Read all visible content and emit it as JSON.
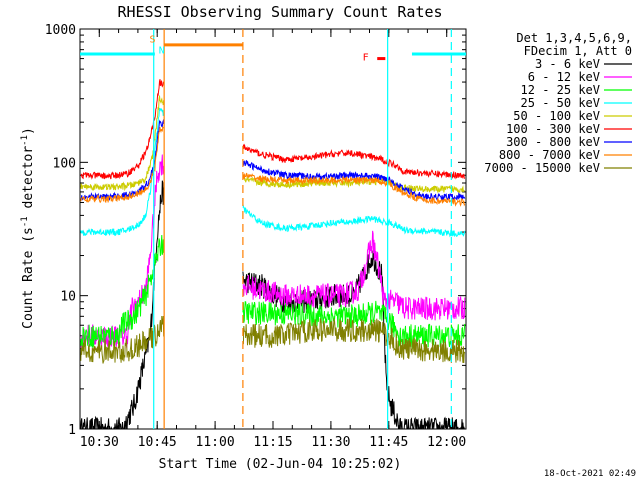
{
  "chart_data": {
    "type": "line",
    "title": "RHESSI Observing Summary Count Rates",
    "xlabel": "Start Time (02-Jun-04 10:25:02)",
    "ylabel_main": "Count Rate (s",
    "ylabel_sup1": "-1",
    "ylabel_mid": " detector",
    "ylabel_sup2": "-1",
    "ylabel_end": ")",
    "yscale": "log",
    "ylim": [
      1,
      1000
    ],
    "xlim": [
      10.4167,
      12.0833
    ],
    "x_ticks": [
      {
        "value": 10.5,
        "label": "10:30"
      },
      {
        "value": 10.75,
        "label": "10:45"
      },
      {
        "value": 11.0,
        "label": "11:00"
      },
      {
        "value": 11.25,
        "label": "11:15"
      },
      {
        "value": 11.5,
        "label": "11:30"
      },
      {
        "value": 11.75,
        "label": "11:45"
      },
      {
        "value": 12.0,
        "label": "12:00"
      }
    ],
    "y_ticks": [
      {
        "value": 1,
        "label": "1"
      },
      {
        "value": 10,
        "label": "10"
      },
      {
        "value": 100,
        "label": "100"
      },
      {
        "value": 1000,
        "label": "1000"
      }
    ],
    "legend_header": [
      "Det 1,3,4,5,6,9,",
      "FDecim 1, Att 0"
    ],
    "timestamp": "18-Oct-2021 02:49",
    "gaps": [
      [
        10.78,
        11.12
      ]
    ],
    "series": [
      {
        "name": "3 - 6 keV",
        "color": "#000000",
        "points": [
          [
            10.42,
            1
          ],
          [
            10.55,
            1
          ],
          [
            10.6,
            1
          ],
          [
            10.65,
            1.5
          ],
          [
            10.68,
            2.5
          ],
          [
            10.72,
            5
          ],
          [
            10.75,
            30
          ],
          [
            10.77,
            60
          ],
          [
            11.12,
            13
          ],
          [
            11.2,
            12
          ],
          [
            11.3,
            9
          ],
          [
            11.4,
            9
          ],
          [
            11.52,
            10
          ],
          [
            11.6,
            10
          ],
          [
            11.68,
            20
          ],
          [
            11.72,
            14
          ],
          [
            11.74,
            2
          ],
          [
            11.76,
            1.5
          ],
          [
            11.8,
            1
          ],
          [
            12.08,
            1
          ]
        ]
      },
      {
        "name": "6 - 12 keV",
        "color": "#ff00ff",
        "points": [
          [
            10.42,
            5
          ],
          [
            10.62,
            5
          ],
          [
            10.64,
            8
          ],
          [
            10.67,
            9
          ],
          [
            10.7,
            11
          ],
          [
            10.72,
            20
          ],
          [
            10.75,
            80
          ],
          [
            10.77,
            100
          ],
          [
            11.12,
            12
          ],
          [
            11.2,
            11
          ],
          [
            11.3,
            10
          ],
          [
            11.4,
            10
          ],
          [
            11.5,
            10
          ],
          [
            11.55,
            10
          ],
          [
            11.62,
            11
          ],
          [
            11.68,
            26
          ],
          [
            11.71,
            15
          ],
          [
            11.73,
            9
          ],
          [
            11.78,
            9
          ],
          [
            11.82,
            8
          ],
          [
            12.08,
            8
          ]
        ]
      },
      {
        "name": "12 - 25 keV",
        "color": "#00ff00",
        "points": [
          [
            10.42,
            5
          ],
          [
            10.58,
            5
          ],
          [
            10.6,
            6
          ],
          [
            10.65,
            7
          ],
          [
            10.7,
            10
          ],
          [
            10.75,
            20
          ],
          [
            10.77,
            25
          ],
          [
            11.12,
            7.5
          ],
          [
            11.3,
            7.3
          ],
          [
            11.5,
            7
          ],
          [
            11.6,
            7
          ],
          [
            11.7,
            7.5
          ],
          [
            11.75,
            6.5
          ],
          [
            11.8,
            5
          ],
          [
            12.08,
            5
          ]
        ]
      },
      {
        "name": "25 - 50 keV",
        "color": "#00ffff",
        "points": [
          [
            10.42,
            30
          ],
          [
            10.58,
            30
          ],
          [
            10.62,
            31
          ],
          [
            10.67,
            34
          ],
          [
            10.7,
            40
          ],
          [
            10.72,
            60
          ],
          [
            10.74,
            120
          ],
          [
            10.76,
            250
          ],
          [
            11.12,
            45
          ],
          [
            11.2,
            35
          ],
          [
            11.3,
            32
          ],
          [
            11.4,
            33
          ],
          [
            11.5,
            35
          ],
          [
            11.6,
            36
          ],
          [
            11.68,
            38
          ],
          [
            11.72,
            36
          ],
          [
            11.76,
            35
          ],
          [
            11.82,
            31
          ],
          [
            12.08,
            29
          ]
        ]
      },
      {
        "name": "50 - 100 keV",
        "color": "#cccc00",
        "points": [
          [
            10.42,
            66
          ],
          [
            10.55,
            65
          ],
          [
            10.6,
            66
          ],
          [
            10.65,
            68
          ],
          [
            10.7,
            75
          ],
          [
            10.73,
            110
          ],
          [
            10.76,
            300
          ],
          [
            11.12,
            75
          ],
          [
            11.2,
            70
          ],
          [
            11.3,
            68
          ],
          [
            11.45,
            70
          ],
          [
            11.6,
            70
          ],
          [
            11.7,
            72
          ],
          [
            11.75,
            71
          ],
          [
            11.8,
            65
          ],
          [
            11.9,
            63
          ],
          [
            12.08,
            63
          ]
        ]
      },
      {
        "name": "100 - 300 keV",
        "color": "#ff0000",
        "points": [
          [
            10.42,
            80
          ],
          [
            10.55,
            79
          ],
          [
            10.62,
            82
          ],
          [
            10.67,
            95
          ],
          [
            10.71,
            130
          ],
          [
            10.74,
            220
          ],
          [
            10.76,
            400
          ],
          [
            11.12,
            130
          ],
          [
            11.2,
            115
          ],
          [
            11.3,
            105
          ],
          [
            11.4,
            108
          ],
          [
            11.5,
            115
          ],
          [
            11.58,
            118
          ],
          [
            11.65,
            112
          ],
          [
            11.72,
            105
          ],
          [
            11.78,
            95
          ],
          [
            11.82,
            85
          ],
          [
            11.95,
            82
          ],
          [
            12.08,
            80
          ]
        ]
      },
      {
        "name": "300 - 800 keV",
        "color": "#0000ff",
        "points": [
          [
            10.42,
            55
          ],
          [
            10.55,
            55
          ],
          [
            10.62,
            57
          ],
          [
            10.67,
            60
          ],
          [
            10.71,
            70
          ],
          [
            10.74,
            100
          ],
          [
            10.76,
            200
          ],
          [
            11.12,
            100
          ],
          [
            11.2,
            88
          ],
          [
            11.3,
            80
          ],
          [
            11.45,
            78
          ],
          [
            11.6,
            80
          ],
          [
            11.7,
            78
          ],
          [
            11.75,
            75
          ],
          [
            11.8,
            65
          ],
          [
            11.9,
            55
          ],
          [
            12.08,
            55
          ]
        ]
      },
      {
        "name": "800 - 7000 keV",
        "color": "#ff8000",
        "points": [
          [
            10.42,
            53
          ],
          [
            10.55,
            53
          ],
          [
            10.62,
            55
          ],
          [
            10.67,
            58
          ],
          [
            10.71,
            65
          ],
          [
            10.74,
            90
          ],
          [
            10.76,
            180
          ],
          [
            11.12,
            80
          ],
          [
            11.2,
            75
          ],
          [
            11.3,
            73
          ],
          [
            11.45,
            73
          ],
          [
            11.6,
            74
          ],
          [
            11.7,
            73
          ],
          [
            11.75,
            70
          ],
          [
            11.8,
            60
          ],
          [
            11.9,
            52
          ],
          [
            12.08,
            50
          ]
        ]
      },
      {
        "name": "7000 - 15000 keV",
        "color": "#808000",
        "points": [
          [
            10.42,
            3.8
          ],
          [
            10.6,
            3.8
          ],
          [
            10.65,
            4
          ],
          [
            10.7,
            4.5
          ],
          [
            10.74,
            5
          ],
          [
            10.77,
            6
          ],
          [
            11.12,
            5
          ],
          [
            11.3,
            5
          ],
          [
            11.4,
            5.5
          ],
          [
            11.5,
            5.5
          ],
          [
            11.6,
            5.5
          ],
          [
            11.7,
            5.5
          ],
          [
            11.75,
            5
          ],
          [
            11.8,
            4
          ],
          [
            12.08,
            3.8
          ]
        ]
      }
    ],
    "markers": [
      {
        "type": "line",
        "color": "#00ffff",
        "y": 650,
        "x_start": 10.4167,
        "x_end": 10.74
      },
      {
        "type": "line",
        "color": "#00ffff",
        "y": 650,
        "x_start": 11.85,
        "x_end": 12.0833
      },
      {
        "type": "line",
        "color": "#ff8000",
        "y": 760,
        "x_start": 10.78,
        "x_end": 11.12
      },
      {
        "type": "line",
        "color": "#ff0000",
        "y": 600,
        "x_start": 11.7,
        "x_end": 11.735
      }
    ],
    "marker_labels": [
      {
        "text": "S",
        "color": "#ff8000",
        "x": 10.73,
        "y": 850
      },
      {
        "text": "N",
        "color": "#00ffff",
        "x": 10.77,
        "y": 700
      },
      {
        "text": "F",
        "color": "#ff0000",
        "x": 11.65,
        "y": 620
      }
    ],
    "vlines": [
      {
        "x": 10.735,
        "color": "#00ffff",
        "style": "solid"
      },
      {
        "x": 10.78,
        "color": "#ff8000",
        "style": "solid"
      },
      {
        "x": 11.12,
        "color": "#ff8000",
        "style": "dashed"
      },
      {
        "x": 11.745,
        "color": "#00ffff",
        "style": "solid"
      },
      {
        "x": 12.02,
        "color": "#00ffff",
        "style": "dashed"
      }
    ]
  }
}
